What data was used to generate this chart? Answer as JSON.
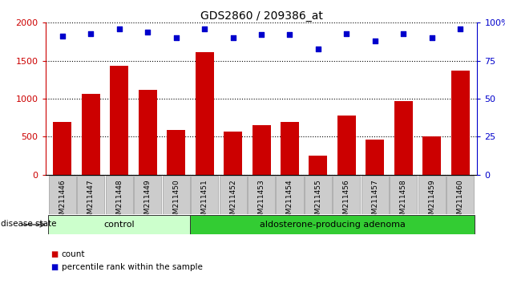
{
  "title": "GDS2860 / 209386_at",
  "samples": [
    "GSM211446",
    "GSM211447",
    "GSM211448",
    "GSM211449",
    "GSM211450",
    "GSM211451",
    "GSM211452",
    "GSM211453",
    "GSM211454",
    "GSM211455",
    "GSM211456",
    "GSM211457",
    "GSM211458",
    "GSM211459",
    "GSM211460"
  ],
  "counts": [
    690,
    1060,
    1430,
    1120,
    590,
    1610,
    570,
    650,
    690,
    250,
    780,
    460,
    970,
    500,
    1370
  ],
  "percentiles": [
    91,
    93,
    96,
    94,
    90,
    96,
    90,
    92,
    92,
    83,
    93,
    88,
    93,
    90,
    96
  ],
  "control_count": 5,
  "adenoma_count": 10,
  "control_label": "control",
  "adenoma_label": "aldosterone-producing adenoma",
  "disease_state_label": "disease state",
  "legend_count": "count",
  "legend_percentile": "percentile rank within the sample",
  "ylim_left": [
    0,
    2000
  ],
  "ylim_right": [
    0,
    100
  ],
  "yticks_left": [
    0,
    500,
    1000,
    1500,
    2000
  ],
  "yticks_right": [
    0,
    25,
    50,
    75,
    100
  ],
  "bar_color": "#cc0000",
  "dot_color": "#0000cc",
  "control_bg": "#ccffcc",
  "adenoma_bg": "#33cc33",
  "tick_bg": "#cccccc",
  "title_fontsize": 10,
  "axis_fontsize": 8,
  "tick_fontsize": 6.5,
  "label_fontsize": 8
}
